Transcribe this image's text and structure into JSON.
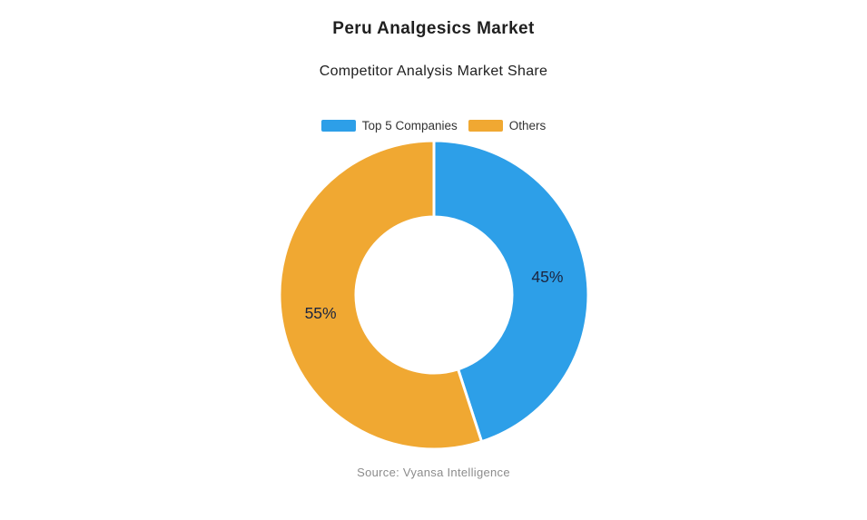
{
  "header": {
    "title": "Peru Analgesics Market",
    "subtitle": "Competitor Analysis Market Share"
  },
  "source_note": "Source: Vyansa Intelligence",
  "chart_data": {
    "type": "pie",
    "subtype": "donut",
    "title": "Peru Analgesics Market",
    "subtitle": "Competitor Analysis Market Share",
    "unit": "%",
    "categories": [
      "Top 5 Companies",
      "Others"
    ],
    "values": [
      45,
      55
    ],
    "slices": [
      {
        "name": "Top 5 Companies",
        "value": 45,
        "label": "45%",
        "color": "#2d9fe8"
      },
      {
        "name": "Others",
        "value": 55,
        "label": "55%",
        "color": "#f0a832"
      }
    ],
    "start_angle_deg_from_top": 0,
    "direction": "clockwise",
    "donut_hole_ratio": 0.51,
    "legend_position": "top",
    "slice_separator_color": "#ffffff"
  }
}
